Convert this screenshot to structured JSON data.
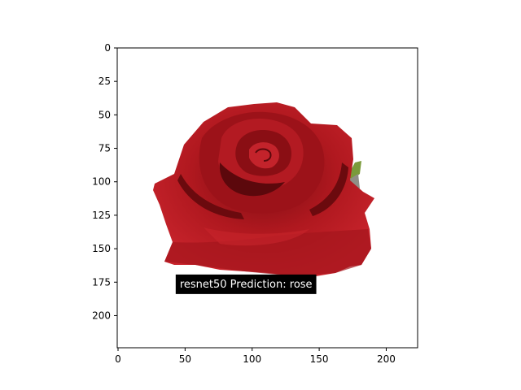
{
  "chart_data": {
    "type": "image",
    "image_subject": "red rose",
    "xlim": [
      0,
      224
    ],
    "ylim": [
      224,
      0
    ],
    "x_ticks": [
      "0",
      "50",
      "100",
      "150",
      "200"
    ],
    "x_tick_values": [
      0,
      50,
      100,
      150,
      200
    ],
    "y_ticks": [
      "0",
      "25",
      "50",
      "75",
      "100",
      "125",
      "150",
      "175",
      "200"
    ],
    "y_tick_values": [
      0,
      25,
      50,
      75,
      100,
      125,
      150,
      175,
      200
    ],
    "annotation": {
      "text": "resnet50 Prediction: rose",
      "x": 43,
      "y": 179,
      "background": "#000000",
      "color": "#ffffff"
    }
  },
  "colors": {
    "petal_dark": "#6b0a0e",
    "petal_mid": "#a3141c",
    "petal_light": "#c8242c",
    "leaf": "#7a9a3a"
  }
}
